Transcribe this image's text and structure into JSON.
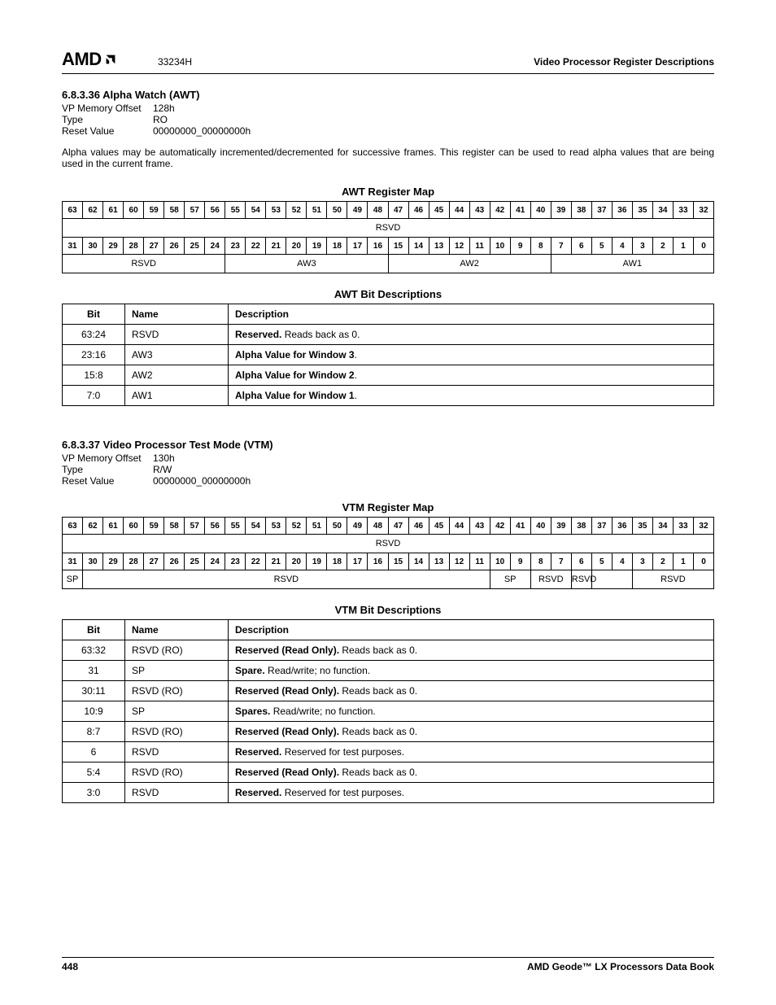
{
  "header": {
    "logo_text": "AMD",
    "docnum": "33234H",
    "right": "Video Processor Register Descriptions"
  },
  "awt": {
    "sec": "6.8.3.36   Alpha Watch (AWT)",
    "meta": [
      {
        "label": "VP Memory Offset",
        "val": "128h"
      },
      {
        "label": "Type",
        "val": "RO"
      },
      {
        "label": "Reset Value",
        "val": "00000000_00000000h"
      }
    ],
    "body": "Alpha values may be automatically incremented/decremented for successive frames. This register can be used to read alpha values that are being used in the current frame.",
    "map_title": "AWT Register Map",
    "bits_hi": [
      "63",
      "62",
      "61",
      "60",
      "59",
      "58",
      "57",
      "56",
      "55",
      "54",
      "53",
      "52",
      "51",
      "50",
      "49",
      "48",
      "47",
      "46",
      "45",
      "44",
      "43",
      "42",
      "41",
      "40",
      "39",
      "38",
      "37",
      "36",
      "35",
      "34",
      "33",
      "32"
    ],
    "bits_lo": [
      "31",
      "30",
      "29",
      "28",
      "27",
      "26",
      "25",
      "24",
      "23",
      "22",
      "21",
      "20",
      "19",
      "18",
      "17",
      "16",
      "15",
      "14",
      "13",
      "12",
      "11",
      "10",
      "9",
      "8",
      "7",
      "6",
      "5",
      "4",
      "3",
      "2",
      "1",
      "0"
    ],
    "fields_hi": [
      {
        "span": 32,
        "label": "RSVD"
      }
    ],
    "fields_lo": [
      {
        "span": 8,
        "label": "RSVD"
      },
      {
        "span": 8,
        "label": "AW3"
      },
      {
        "span": 8,
        "label": "AW2"
      },
      {
        "span": 8,
        "label": "AW1"
      }
    ],
    "desc_title": "AWT Bit Descriptions",
    "desc_headers": [
      "Bit",
      "Name",
      "Description"
    ],
    "desc_rows": [
      {
        "bit": "63:24",
        "name": "RSVD",
        "desc_b": "Reserved.",
        "desc_r": " Reads back as 0."
      },
      {
        "bit": "23:16",
        "name": "AW3",
        "desc_b": "Alpha Value for Window 3",
        "desc_r": "."
      },
      {
        "bit": "15:8",
        "name": "AW2",
        "desc_b": "Alpha Value for Window 2",
        "desc_r": "."
      },
      {
        "bit": "7:0",
        "name": "AW1",
        "desc_b": "Alpha Value for Window 1",
        "desc_r": "."
      }
    ]
  },
  "vtm": {
    "sec": "6.8.3.37   Video Processor Test Mode (VTM)",
    "meta": [
      {
        "label": "VP Memory Offset",
        "val": "130h"
      },
      {
        "label": "Type",
        "val": "R/W"
      },
      {
        "label": "Reset Value",
        "val": "00000000_00000000h"
      }
    ],
    "map_title": "VTM Register Map",
    "bits_hi": [
      "63",
      "62",
      "61",
      "60",
      "59",
      "58",
      "57",
      "56",
      "55",
      "54",
      "53",
      "52",
      "51",
      "50",
      "49",
      "48",
      "47",
      "46",
      "45",
      "44",
      "43",
      "42",
      "41",
      "40",
      "39",
      "38",
      "37",
      "36",
      "35",
      "34",
      "33",
      "32"
    ],
    "bits_lo": [
      "31",
      "30",
      "29",
      "28",
      "27",
      "26",
      "25",
      "24",
      "23",
      "22",
      "21",
      "20",
      "19",
      "18",
      "17",
      "16",
      "15",
      "14",
      "13",
      "12",
      "11",
      "10",
      "9",
      "8",
      "7",
      "6",
      "5",
      "4",
      "3",
      "2",
      "1",
      "0"
    ],
    "fields_hi": [
      {
        "span": 32,
        "label": "RSVD"
      }
    ],
    "fields_lo": [
      {
        "span": 1,
        "label": "SP"
      },
      {
        "span": 20,
        "label": "RSVD"
      },
      {
        "span": 2,
        "label": "SP"
      },
      {
        "span": 2,
        "label": "RSVD"
      },
      {
        "span": 1,
        "label": "RSVD"
      },
      {
        "span": 2,
        "label": ""
      },
      {
        "span": 4,
        "label": "RSVD"
      }
    ],
    "desc_title": "VTM Bit Descriptions",
    "desc_headers": [
      "Bit",
      "Name",
      "Description"
    ],
    "desc_rows": [
      {
        "bit": "63:32",
        "name": "RSVD (RO)",
        "desc_b": "Reserved (Read Only).",
        "desc_r": " Reads back as 0."
      },
      {
        "bit": "31",
        "name": "SP",
        "desc_b": "Spare.",
        "desc_r": " Read/write; no function."
      },
      {
        "bit": "30:11",
        "name": "RSVD (RO)",
        "desc_b": "Reserved (Read Only).",
        "desc_r": " Reads back as 0."
      },
      {
        "bit": "10:9",
        "name": "SP",
        "desc_b": "Spares.",
        "desc_r": " Read/write; no function."
      },
      {
        "bit": "8:7",
        "name": "RSVD (RO)",
        "desc_b": "Reserved (Read Only).",
        "desc_r": " Reads back as 0."
      },
      {
        "bit": "6",
        "name": "RSVD",
        "desc_b": "Reserved.",
        "desc_r": " Reserved for test purposes."
      },
      {
        "bit": "5:4",
        "name": "RSVD (RO)",
        "desc_b": "Reserved (Read Only).",
        "desc_r": " Reads back as 0."
      },
      {
        "bit": "3:0",
        "name": "RSVD",
        "desc_b": "Reserved.",
        "desc_r": " Reserved for test purposes."
      }
    ]
  },
  "footer": {
    "page": "448",
    "book": "AMD Geode™ LX Processors Data Book"
  }
}
